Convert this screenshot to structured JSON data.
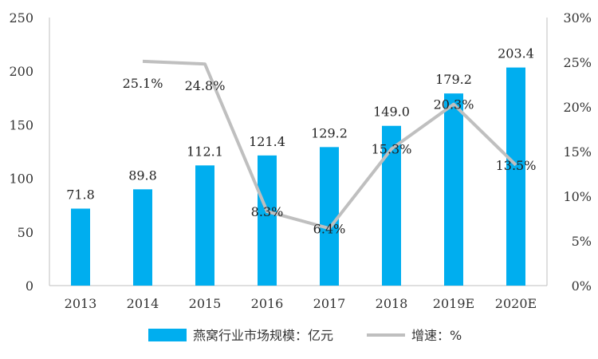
{
  "chart_data": {
    "type": "bar",
    "categories": [
      "2013",
      "2014",
      "2015",
      "2016",
      "2017",
      "2018",
      "2019E",
      "2020E"
    ],
    "series": [
      {
        "name": "燕窝行业市场规模：亿元",
        "type": "bar",
        "axis": "left",
        "color": "#00AEEF",
        "values": [
          71.8,
          89.8,
          112.1,
          121.4,
          129.2,
          149.0,
          179.2,
          203.4
        ],
        "labels": [
          "71.8",
          "89.8",
          "112.1",
          "121.4",
          "129.2",
          "149.0",
          "179.2",
          "203.4"
        ]
      },
      {
        "name": "增速：%",
        "type": "line",
        "axis": "right",
        "color": "#BFBFBF",
        "values": [
          null,
          25.1,
          24.8,
          8.3,
          6.4,
          15.3,
          20.3,
          13.5
        ],
        "labels": [
          "",
          "25.1%",
          "24.8%",
          "8.3%",
          "6.4%",
          "15.3%",
          "20.3%",
          "13.5%"
        ]
      }
    ],
    "y_left": {
      "lim": [
        0,
        250
      ],
      "ticks": [
        "0",
        "50",
        "100",
        "150",
        "200",
        "250"
      ]
    },
    "y_right": {
      "lim": [
        0,
        30
      ],
      "ticks": [
        "0%",
        "5%",
        "10%",
        "15%",
        "20%",
        "25%",
        "30%"
      ]
    },
    "grid": false,
    "legend_position": "bottom"
  }
}
